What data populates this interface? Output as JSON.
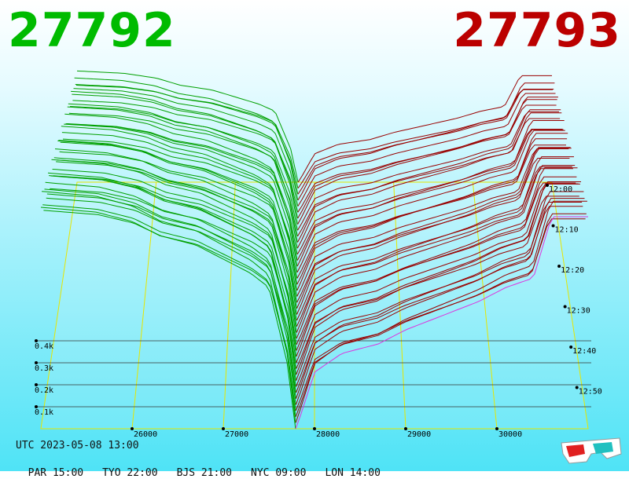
{
  "best_bid": "27792",
  "best_ask": "27793",
  "colors": {
    "bid": "#00bb00",
    "ask": "#bb0000",
    "bid_line": "#00a000",
    "ask_line": "#990000",
    "axis": "#e6e600",
    "latest_line": "#dd33dd"
  },
  "utc_label": "UTC 2023-05-08 13:00",
  "time_zones": [
    "PAR 15:00",
    "TYO 22:00",
    "BJS 21:00",
    "NYC 09:00",
    "LON 14:00"
  ],
  "glasses_icon": "3d-glasses-icon",
  "chart_data": {
    "type": "area",
    "x_ticks": [
      "26000",
      "27000",
      "28000",
      "29000",
      "30000"
    ],
    "depth_ticks": [
      "0.1k",
      "0.2k",
      "0.3k",
      "0.4k"
    ],
    "time_ticks": [
      "12:00",
      "12:10",
      "12:20",
      "12:30",
      "12:40",
      "12:50"
    ],
    "xlim": [
      25000,
      31000
    ],
    "depth_range": [
      0,
      0.5
    ],
    "bid_profile": {
      "x": [
        25000,
        25600,
        26000,
        26300,
        26700,
        27000,
        27300,
        27500,
        27700,
        27792
      ],
      "cum_depth_k": [
        0.47,
        0.46,
        0.44,
        0.41,
        0.39,
        0.36,
        0.33,
        0.3,
        0.14,
        0.0
      ]
    },
    "ask_profile": {
      "x": [
        27793,
        27850,
        28000,
        28300,
        28700,
        29000,
        29400,
        29800,
        30100,
        30400,
        30600
      ],
      "cum_depth_k": [
        0.0,
        0.03,
        0.12,
        0.16,
        0.18,
        0.21,
        0.24,
        0.27,
        0.3,
        0.32,
        0.45
      ]
    }
  }
}
